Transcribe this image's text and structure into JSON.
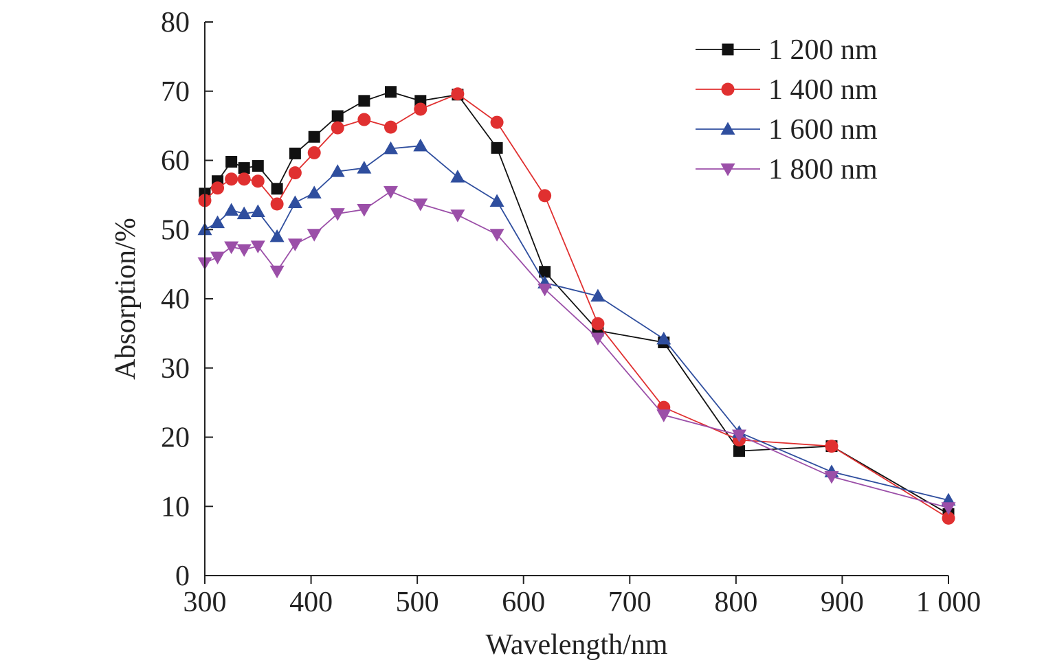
{
  "chart_data": {
    "type": "line",
    "title": "",
    "xlabel": "Wavelength/nm",
    "ylabel": "Absorption/%",
    "xlim": [
      300,
      1000
    ],
    "ylim": [
      0,
      80
    ],
    "x_ticks": [
      {
        "value": 300,
        "label": "300"
      },
      {
        "value": 400,
        "label": "400"
      },
      {
        "value": 500,
        "label": "500"
      },
      {
        "value": 600,
        "label": "600"
      },
      {
        "value": 700,
        "label": "700"
      },
      {
        "value": 800,
        "label": "800"
      },
      {
        "value": 900,
        "label": "900"
      },
      {
        "value": 1000,
        "label": "1 000"
      }
    ],
    "y_ticks": [
      {
        "value": 0,
        "label": "0"
      },
      {
        "value": 10,
        "label": "10"
      },
      {
        "value": 20,
        "label": "20"
      },
      {
        "value": 30,
        "label": "30"
      },
      {
        "value": 40,
        "label": "40"
      },
      {
        "value": 50,
        "label": "50"
      },
      {
        "value": 60,
        "label": "60"
      },
      {
        "value": 70,
        "label": "70"
      },
      {
        "value": 80,
        "label": "80"
      }
    ],
    "grid": false,
    "legend_position": "top-right",
    "series": [
      {
        "name": "1 200 nm",
        "color": "#111111",
        "marker": "square",
        "x": [
          300,
          312,
          325,
          337,
          350,
          368,
          385,
          403,
          425,
          450,
          475,
          503,
          538,
          575,
          620,
          670,
          732,
          803,
          890,
          1000
        ],
        "y": [
          55.2,
          57,
          59.8,
          58.9,
          59.2,
          55.9,
          61,
          63.4,
          66.4,
          68.6,
          69.9,
          68.6,
          69.5,
          61.8,
          43.9,
          35.4,
          33.7,
          18,
          18.7,
          8.9
        ]
      },
      {
        "name": "1 400 nm",
        "color": "#e03030",
        "marker": "circle",
        "x": [
          300,
          312,
          325,
          337,
          350,
          368,
          385,
          403,
          425,
          450,
          475,
          503,
          538,
          575,
          620,
          670,
          732,
          803,
          890,
          1000
        ],
        "y": [
          54.2,
          56,
          57.3,
          57.3,
          57,
          53.7,
          58.2,
          61.1,
          64.7,
          65.9,
          64.8,
          67.4,
          69.6,
          65.5,
          54.9,
          36.4,
          24.3,
          19.6,
          18.7,
          8.3
        ]
      },
      {
        "name": "1 600 nm",
        "color": "#2f4e9e",
        "marker": "triangle-up",
        "x": [
          300,
          312,
          325,
          337,
          350,
          368,
          385,
          403,
          425,
          450,
          475,
          503,
          538,
          575,
          620,
          670,
          732,
          803,
          890,
          1000
        ],
        "y": [
          50,
          51,
          52.8,
          52.3,
          52.6,
          49,
          53.9,
          55.3,
          58.4,
          58.9,
          61.7,
          62.1,
          57.6,
          54.1,
          42.3,
          40.4,
          34.2,
          20.7,
          15,
          10.9
        ]
      },
      {
        "name": "1 800 nm",
        "color": "#9b4fa8",
        "marker": "triangle-down",
        "x": [
          300,
          312,
          325,
          337,
          350,
          368,
          385,
          403,
          425,
          450,
          475,
          503,
          538,
          575,
          620,
          670,
          732,
          803,
          890,
          1000
        ],
        "y": [
          45.2,
          46,
          47.5,
          47.1,
          47.6,
          44,
          47.9,
          49.3,
          52.3,
          52.9,
          55.5,
          53.7,
          52.1,
          49.3,
          41.4,
          34.3,
          23.2,
          20.3,
          14.3,
          9.8
        ]
      }
    ]
  }
}
